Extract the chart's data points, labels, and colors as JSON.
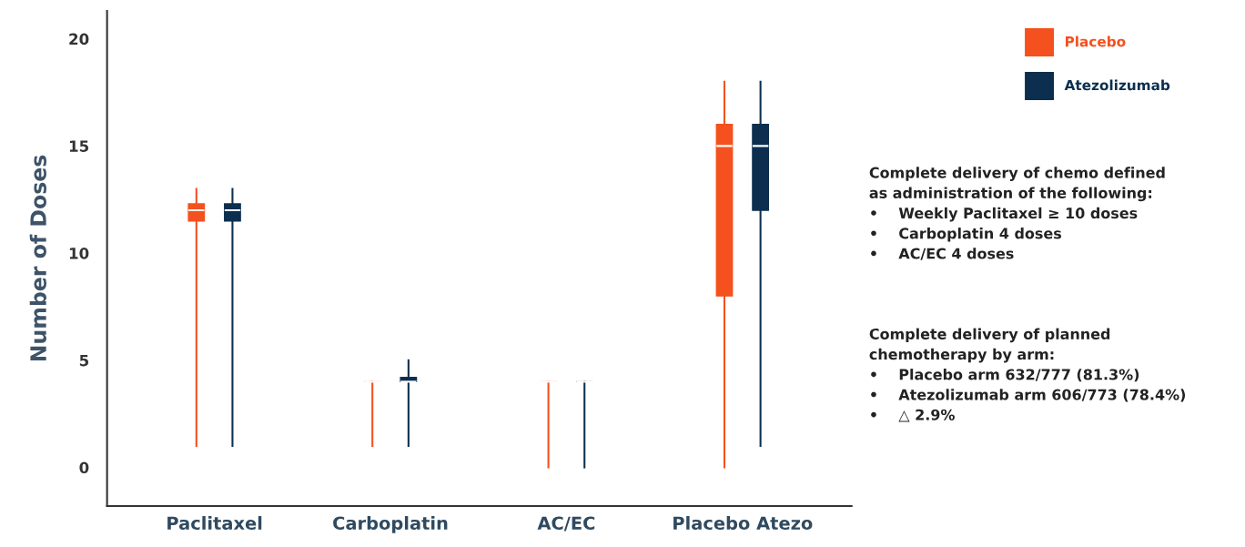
{
  "chart_data": {
    "type": "box",
    "ylabel": "Number of Doses",
    "categories": [
      "Paclitaxel",
      "Carboplatin",
      "AC/EC",
      "Placebo Atezo"
    ],
    "series": [
      {
        "name": "Placebo",
        "color": "#f4511e",
        "boxes": [
          {
            "low": 1,
            "q1": 11.5,
            "median": 12,
            "q3": 12.3,
            "high": 13
          },
          {
            "low": 1,
            "q1": 4,
            "median": 4,
            "q3": 4,
            "high": 4
          },
          {
            "low": 0,
            "q1": 4,
            "median": 4,
            "q3": 4,
            "high": 4
          },
          {
            "low": 0,
            "q1": 8,
            "median": 15,
            "q3": 16,
            "high": 18
          }
        ]
      },
      {
        "name": "Atezolizumab",
        "color": "#0d2f4f",
        "boxes": [
          {
            "low": 1,
            "q1": 11.5,
            "median": 12,
            "q3": 12.3,
            "high": 13
          },
          {
            "low": 1,
            "q1": 4,
            "median": 4,
            "q3": 4.2,
            "high": 5
          },
          {
            "low": 0,
            "q1": 4,
            "median": 4,
            "q3": 4,
            "high": 4
          },
          {
            "low": 1,
            "q1": 12,
            "median": 15,
            "q3": 16,
            "high": 18
          }
        ]
      }
    ],
    "ylim": [
      -1.8,
      21.3
    ],
    "yticks": [
      0,
      5,
      10,
      15,
      20
    ],
    "legend": "top right",
    "annotations": [
      "Complete delivery of chemo defined\nas administration of the following:\n•    Weekly Paclitaxel ≥ 10 doses\n•    Carboplatin 4 doses\n•    AC/EC 4 doses",
      "Complete delivery of planned\nchemotherapy by arm:\n•    Placebo arm 632/777 (81.3%)\n•    Atezolizumab arm 606/773 (78.4%)\n•    △ 2.9%"
    ]
  }
}
